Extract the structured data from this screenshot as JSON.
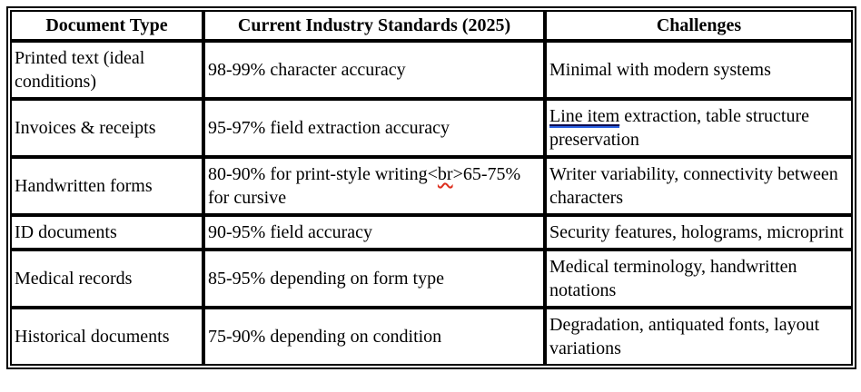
{
  "colors": {
    "border_color": "#000000",
    "text_color": "#000000",
    "background": "#ffffff",
    "grammar_underline": "#2b62e3",
    "grammar_underline_top": "#0a0a50",
    "spellcheck_underline": "#dd2f1e"
  },
  "table": {
    "columns": [
      "Document Type",
      "Current Industry Standards (2025)",
      "Challenges"
    ],
    "rows": [
      {
        "type": "Printed text (ideal conditions)",
        "standard": "98-99% character accuracy",
        "challenge": "Minimal with modern systems"
      },
      {
        "type": "Invoices & receipts",
        "standard": "95-97% field extraction accuracy",
        "challenge_flagged": "Line item",
        "challenge_rest": " extraction, table structure preservation"
      },
      {
        "type": "Handwritten forms",
        "standard_pre": "80-90% for print-style writing<",
        "standard_typo": "br",
        "standard_post": ">65-75% for cursive",
        "challenge": "Writer variability, connectivity between characters"
      },
      {
        "type": "ID documents",
        "standard": "90-95% field accuracy",
        "challenge": "Security features, holograms, microprint"
      },
      {
        "type": "Medical records",
        "standard": "85-95% depending on form type",
        "challenge": "Medical terminology, handwritten notations"
      },
      {
        "type": "Historical documents",
        "standard": "75-90% depending on condition",
        "challenge": "Degradation, antiquated fonts, layout variations"
      }
    ]
  }
}
